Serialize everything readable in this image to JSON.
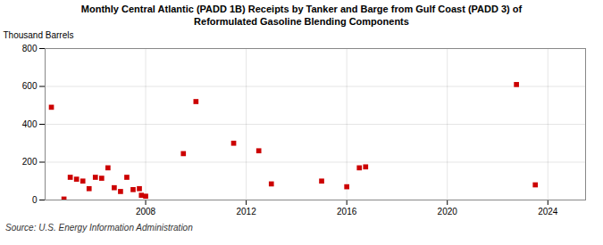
{
  "chart_data": {
    "type": "scatter",
    "title": "Monthly Central Atlantic (PADD 1B) Receipts by Tanker and Barge from Gulf Coast (PADD 3) of\nReformulated Gasoline Blending Components",
    "ylabel": "Thousand Barrels",
    "source": "Source: U.S. Energy Information Administration",
    "x": [
      2004.25,
      2004.75,
      2005.0,
      2005.25,
      2005.5,
      2005.75,
      2006.0,
      2006.25,
      2006.5,
      2006.75,
      2007.0,
      2007.25,
      2007.5,
      2007.75,
      2007.83,
      2008.0,
      2009.5,
      2010.0,
      2011.5,
      2012.5,
      2013.0,
      2015.0,
      2016.0,
      2016.5,
      2016.75,
      2022.75,
      2023.5
    ],
    "values": [
      490,
      5,
      120,
      110,
      100,
      60,
      120,
      115,
      170,
      65,
      45,
      120,
      55,
      60,
      25,
      20,
      245,
      520,
      300,
      260,
      85,
      100,
      70,
      170,
      175,
      610,
      80
    ],
    "color": "#cc0000",
    "marker": "square",
    "xlim": [
      2004.0,
      2025.5
    ],
    "xticks": [
      2008,
      2012,
      2016,
      2020,
      2024
    ],
    "ylim": [
      0,
      800
    ],
    "yticks": [
      0,
      200,
      400,
      600,
      800
    ],
    "grid": true
  }
}
